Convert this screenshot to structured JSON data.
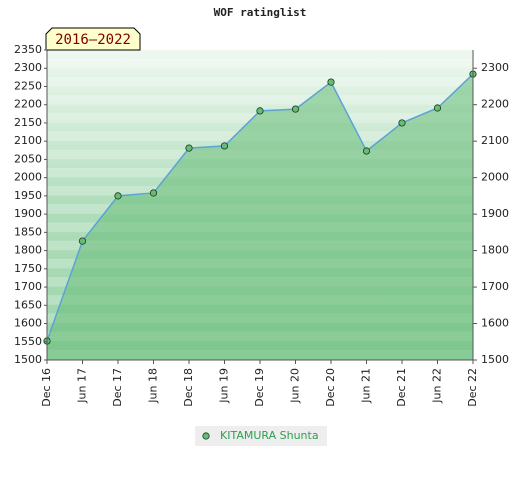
{
  "chart_data": {
    "type": "line",
    "title": "WOF ratinglist",
    "annotation": "2016–2022",
    "categories": [
      "Dec 16",
      "Jun 17",
      "Dec 17",
      "Jun 18",
      "Dec 18",
      "Jun 19",
      "Dec 19",
      "Jun 20",
      "Dec 20",
      "Jun 21",
      "Dec 21",
      "Jun 22",
      "Dec 22"
    ],
    "series": [
      {
        "name": "KITAMURA Shunta",
        "color": "#5ba3d6",
        "marker_color": "#66bb77",
        "values": [
          1552,
          1826,
          1950,
          1958,
          2081,
          2087,
          2183,
          2188,
          2262,
          2073,
          2150,
          2191,
          2284
        ]
      }
    ],
    "ylim": [
      1500,
      2350
    ],
    "yticks": [
      1500,
      1550,
      1600,
      1650,
      1700,
      1750,
      1800,
      1850,
      1900,
      1950,
      2000,
      2050,
      2100,
      2150,
      2200,
      2250,
      2300,
      2350
    ],
    "y2lim": [
      1500,
      2350
    ],
    "y2ticks": [
      1500,
      1600,
      1700,
      1800,
      1900,
      2000,
      2100,
      2200,
      2300
    ],
    "legend": "bottom"
  }
}
